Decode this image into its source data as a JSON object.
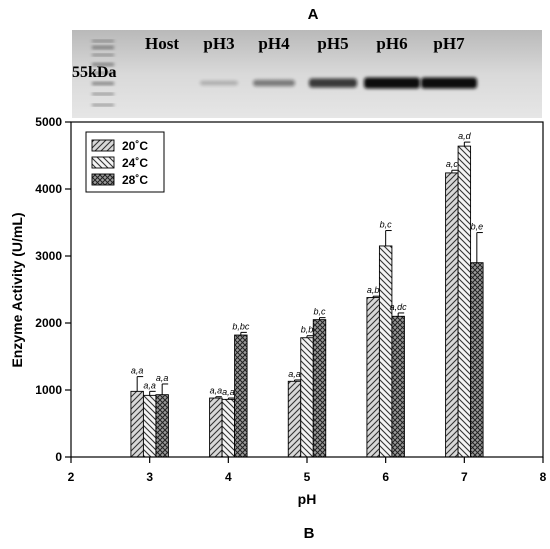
{
  "panel_a": {
    "letter": "A",
    "marker_label": "55kDa",
    "lanes": [
      "Host",
      "pH3",
      "pH4",
      "pH5",
      "pH6",
      "pH7"
    ],
    "band_strength": [
      0.0,
      0.08,
      0.35,
      0.7,
      1.0,
      1.0
    ]
  },
  "panel_b_letter": "B",
  "chart_data": {
    "type": "bar",
    "title": "",
    "xlabel": "pH",
    "ylabel": "Enzyme Activity (U/mL)",
    "xlim": [
      2,
      8
    ],
    "ylim": [
      0,
      5000
    ],
    "x_ticks": [
      2,
      3,
      4,
      5,
      6,
      7,
      8
    ],
    "y_ticks": [
      0,
      1000,
      2000,
      3000,
      4000,
      5000
    ],
    "categories": [
      3,
      4,
      5,
      6,
      7
    ],
    "legend_position": "top-left",
    "grid": false,
    "series": [
      {
        "name": "20˚C",
        "pattern": "hatch-forward",
        "values": [
          980,
          880,
          1130,
          2380,
          4240
        ],
        "errors": [
          220,
          20,
          20,
          20,
          40
        ],
        "labels": [
          "a,a",
          "a,a",
          "a,a",
          "a,b",
          "a,c"
        ]
      },
      {
        "name": "24˚C",
        "pattern": "hatch-back",
        "values": [
          920,
          860,
          1780,
          3150,
          4640
        ],
        "errors": [
          60,
          20,
          30,
          230,
          60
        ],
        "labels": [
          "a,a",
          "a,a",
          "b,b",
          "b,c",
          "a,d"
        ]
      },
      {
        "name": "28˚C",
        "pattern": "crosshatch",
        "values": [
          930,
          1820,
          2050,
          2100,
          2900
        ],
        "errors": [
          160,
          40,
          30,
          50,
          450
        ],
        "labels": [
          "a,a",
          "b,bc",
          "b,c",
          "a,dc",
          "b,e"
        ]
      }
    ]
  }
}
